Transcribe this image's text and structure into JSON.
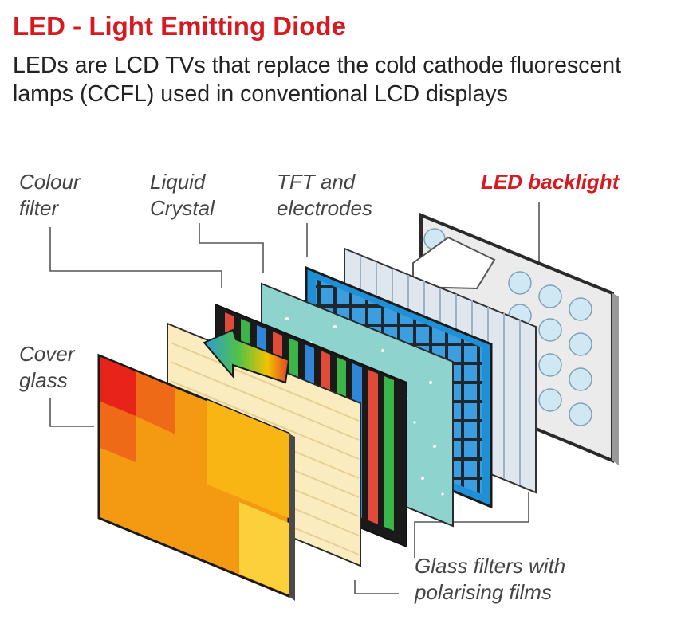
{
  "title": "LED - Light Emitting Diode",
  "subtitle": "LEDs are LCD TVs that replace the cold cathode fluorescent lamps (CCFL) used in conventional LCD displays",
  "labels": {
    "colour_filter": [
      "Colour",
      "filter"
    ],
    "liquid_crystal": [
      "Liquid",
      "Crystal"
    ],
    "tft": [
      "TFT and",
      "electrodes"
    ],
    "led_backlight": "LED backlight",
    "cover_glass": [
      "Cover",
      "glass"
    ],
    "glass_filters": [
      "Glass filters with",
      "polarising films"
    ]
  },
  "colors": {
    "title": "#d71920",
    "orange_panel": "#f39a12",
    "cream_panel": "#fbecc0",
    "teal_panel": "#8fd3cf",
    "blue_panel": "#3aa0e0",
    "led_bulb": "#cfe8f4"
  }
}
